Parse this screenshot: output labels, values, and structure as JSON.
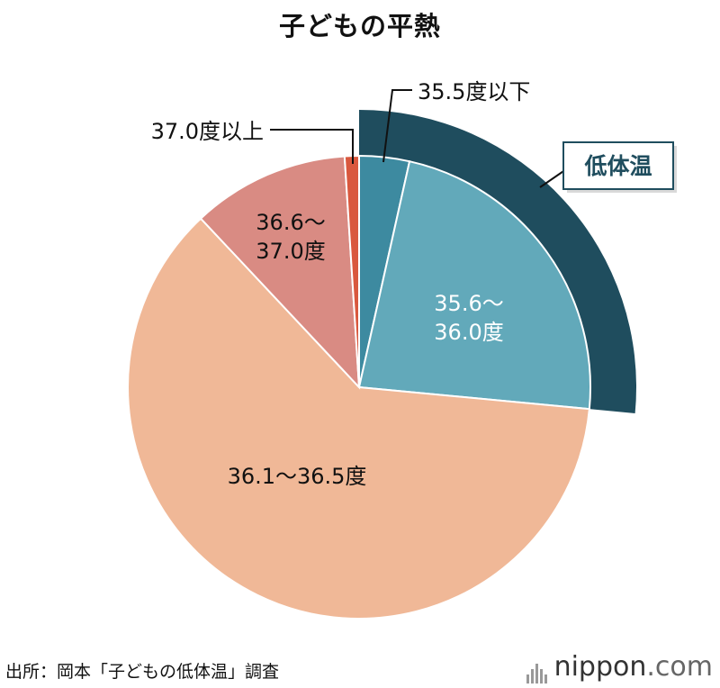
{
  "title": "子どもの平熱",
  "source": "出所：岡本「子どもの低体温」調査",
  "logo": {
    "brand": "nippon",
    "domain": ".com"
  },
  "colors": {
    "slice_355_below": "#3d8aa0",
    "slice_356_360": "#62a9ba",
    "slice_361_365": "#f0b897",
    "slice_366_370": "#d98b83",
    "slice_370_above": "#d9583e",
    "highlight_arc": "#1f4d5e",
    "callout_border": "#1f4d5e"
  },
  "chart_data": {
    "type": "pie",
    "title": "子どもの平熱",
    "slices": [
      {
        "label": "35.5度以下",
        "value": 3.5
      },
      {
        "label": "35.6〜36.0度",
        "value": 23.0
      },
      {
        "label": "36.1〜36.5度",
        "value": 61.5
      },
      {
        "label": "36.6〜37.0度",
        "value": 11.0
      },
      {
        "label": "37.0度以上",
        "value": 1.0
      }
    ],
    "highlight": {
      "label": "低体温",
      "slices": [
        "35.5度以下",
        "35.6〜36.0度"
      ]
    }
  }
}
